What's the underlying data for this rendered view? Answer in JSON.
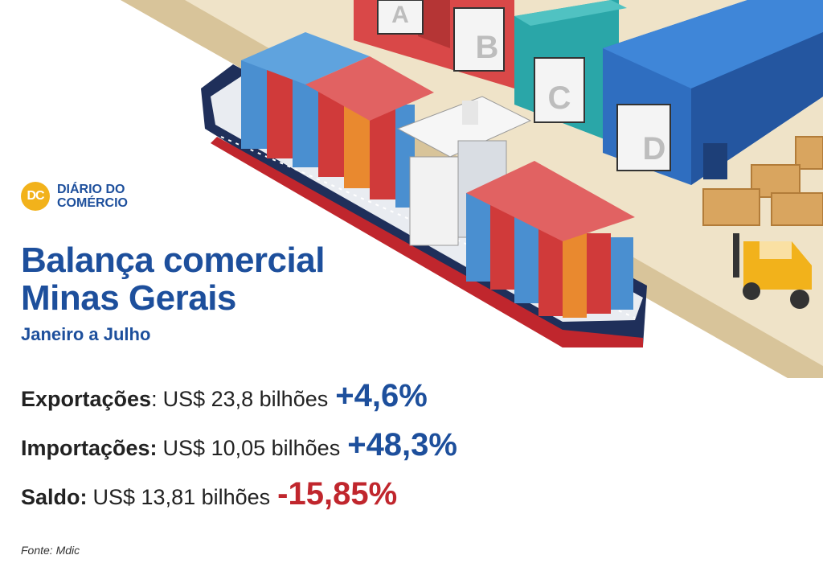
{
  "logo": {
    "badge": "DC",
    "line1": "DIÁRIO DO",
    "line2": "COMÉRCIO"
  },
  "title": {
    "line1": "Balança comercial",
    "line2": "Minas Gerais"
  },
  "subtitle": "Janeiro a Julho",
  "stats": [
    {
      "label": "Exportações",
      "separator": ":",
      "value": "US$ 23,8 bilhões",
      "change": "+4,6%",
      "trend": "up"
    },
    {
      "label": "Importações:",
      "separator": "",
      "value": "US$ 10,05 bilhões",
      "change": "+48,3%",
      "trend": "up"
    },
    {
      "label": "Saldo:",
      "separator": "",
      "value": "US$ 13,81 bilhões",
      "change": "-15,85%",
      "trend": "down"
    }
  ],
  "warehouse_doors": [
    "A",
    "B",
    "C",
    "D"
  ],
  "source": "Fonte: Mdic",
  "colors": {
    "brand_blue": "#1d4f9c",
    "negative_red": "#c0262d",
    "logo_yellow": "#f2b21b",
    "ship_hull": "#1f2f5a",
    "container_blue": "#4a8fd0",
    "container_red": "#d03a3a",
    "container_orange": "#e9892f"
  }
}
